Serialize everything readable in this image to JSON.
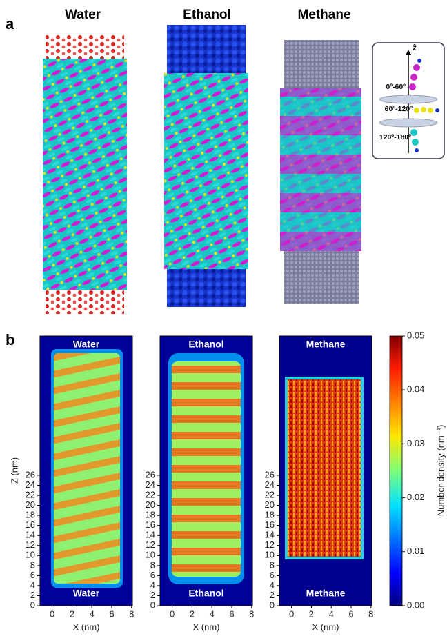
{
  "panel_a": {
    "label": "a",
    "titles": [
      "Water",
      "Ethanol",
      "Methane"
    ],
    "legend": {
      "axis": "ẑ",
      "ranges": [
        "0º-60º",
        "60º-120º",
        "120º-180º"
      ]
    }
  },
  "panel_b": {
    "label": "b",
    "plots": [
      {
        "top_label": "Water",
        "bottom_label": "Water"
      },
      {
        "top_label": "Ethanol",
        "bottom_label": "Ethanol"
      },
      {
        "top_label": "Methane",
        "bottom_label": "Methane"
      }
    ],
    "xlabel": "X (nm)",
    "ylabel": "Z (nm)",
    "xticks": [
      0,
      2,
      4,
      6,
      8
    ],
    "yticks": [
      0,
      2,
      4,
      6,
      8,
      10,
      12,
      14,
      16,
      18,
      20,
      22,
      24,
      26
    ],
    "colorbar": {
      "label": "Number density (nm⁻³)",
      "ticks": [
        "0.00",
        "0.01",
        "0.02",
        "0.03",
        "0.04",
        "0.05"
      ]
    }
  }
}
